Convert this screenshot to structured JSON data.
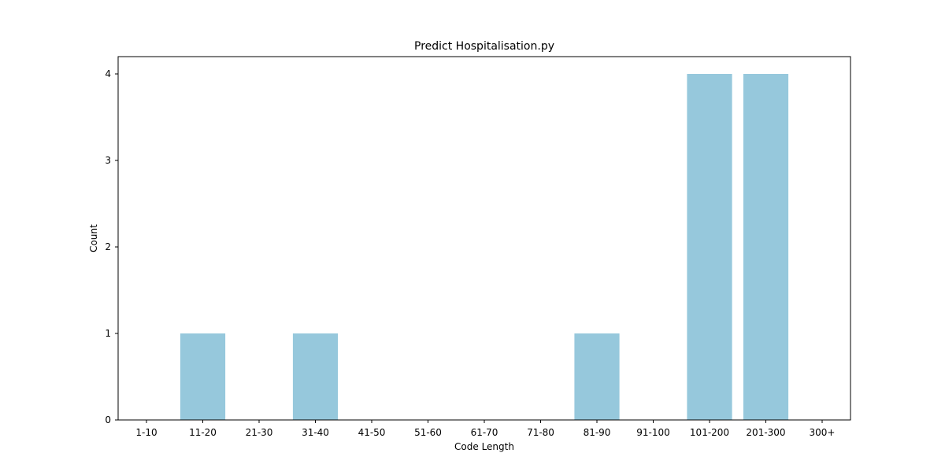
{
  "chart_data": {
    "type": "bar",
    "title": "Predict Hospitalisation.py",
    "xlabel": "Code Length",
    "ylabel": "Count",
    "categories": [
      "1-10",
      "11-20",
      "21-30",
      "31-40",
      "41-50",
      "51-60",
      "61-70",
      "71-80",
      "81-90",
      "91-100",
      "101-200",
      "201-300",
      "300+"
    ],
    "values": [
      0,
      1,
      0,
      1,
      0,
      0,
      0,
      0,
      1,
      0,
      4,
      4,
      0
    ],
    "ylim": [
      0,
      4.2
    ],
    "yticks": [
      0,
      1,
      2,
      3,
      4
    ],
    "grid": false,
    "legend": "none",
    "bar_color": "#96c8dc"
  }
}
